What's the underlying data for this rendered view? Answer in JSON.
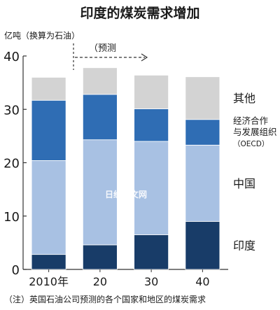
{
  "chart_data": {
    "type": "bar",
    "stacked": true,
    "title": "印度的煤炭需求增加",
    "ylabel": "亿吨（换算为石油）",
    "forecast_label": "（预测",
    "categories": [
      "2010年",
      "20",
      "30",
      "40"
    ],
    "ylim": [
      0,
      40
    ],
    "yticks": [
      0,
      10,
      20,
      30,
      40
    ],
    "series": [
      {
        "name": "印度",
        "values": [
          2.8,
          4.6,
          6.5,
          9.0
        ]
      },
      {
        "name": "中国",
        "values": [
          17.6,
          19.7,
          17.5,
          14.3
        ]
      },
      {
        "name": "经济合作与发展组织（OECD）",
        "values": [
          11.3,
          8.5,
          6.1,
          4.8
        ]
      },
      {
        "name": "其他",
        "values": [
          4.3,
          5.0,
          6.3,
          8.0
        ]
      }
    ],
    "series_colors": [
      "#183c68",
      "#a8c1e3",
      "#2f6db4",
      "#d3d3d3"
    ],
    "legend_labels": {
      "other": "其他",
      "oecd_lines": [
        "经济合作",
        "与发展组织",
        "（OECD）"
      ],
      "china": "中国",
      "india": "印度"
    },
    "watermark": "日经中文网",
    "footnote": "（注）英国石油公司预测的各个国家和地区的煤炭需求",
    "grid": false
  }
}
